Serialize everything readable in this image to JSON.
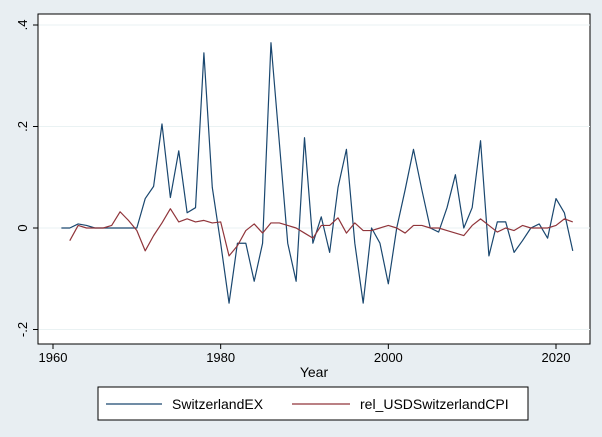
{
  "chart_data": {
    "type": "line",
    "title": "",
    "xlabel": "Year",
    "ylabel": "",
    "xlim": [
      1960,
      2023
    ],
    "ylim": [
      -0.2,
      0.4
    ],
    "x_ticks": [
      1960,
      1980,
      2000,
      2020
    ],
    "x_tick_labels": [
      "1960",
      "1980",
      "2000",
      "2020"
    ],
    "y_ticks": [
      -0.2,
      0,
      0.2,
      0.4
    ],
    "y_tick_labels": [
      "-.2",
      "0",
      ".2",
      ".4"
    ],
    "grid": "horizontal",
    "legend_position": "bottom",
    "series": [
      {
        "name": "SwitzerlandEX",
        "color": "#1a476f",
        "x": [
          1961,
          1962,
          1963,
          1964,
          1965,
          1966,
          1967,
          1968,
          1969,
          1970,
          1971,
          1972,
          1973,
          1974,
          1975,
          1976,
          1977,
          1978,
          1979,
          1980,
          1981,
          1982,
          1983,
          1984,
          1985,
          1986,
          1987,
          1988,
          1989,
          1990,
          1991,
          1992,
          1993,
          1994,
          1995,
          1996,
          1997,
          1998,
          1999,
          2000,
          2001,
          2002,
          2003,
          2004,
          2005,
          2006,
          2007,
          2008,
          2009,
          2010,
          2011,
          2012,
          2013,
          2014,
          2015,
          2016,
          2017,
          2018,
          2019,
          2020,
          2021,
          2022
        ],
        "y": [
          0,
          0,
          0.008,
          0.005,
          0,
          0,
          0,
          0,
          0,
          0,
          0.058,
          0.082,
          0.205,
          0.06,
          0.152,
          0.03,
          0.04,
          0.345,
          0.08,
          -0.03,
          -0.148,
          -0.03,
          -0.03,
          -0.105,
          -0.03,
          0.365,
          0.168,
          -0.03,
          -0.105,
          0.178,
          -0.03,
          0.022,
          -0.048,
          0.08,
          0.155,
          -0.03,
          -0.148,
          0,
          -0.03,
          -0.11,
          0,
          0.075,
          0.155,
          0.075,
          0,
          -0.008,
          0.04,
          0.105,
          0,
          0.04,
          0.172,
          -0.055,
          0.012,
          0.012,
          -0.048,
          -0.025,
          0,
          0.008,
          -0.02,
          0.058,
          0.03,
          -0.045
        ]
      },
      {
        "name": "rel_USDSwitzerlandCPI",
        "color": "#90353b",
        "x": [
          1962,
          1963,
          1964,
          1965,
          1966,
          1967,
          1968,
          1969,
          1970,
          1971,
          1972,
          1973,
          1974,
          1975,
          1976,
          1977,
          1978,
          1979,
          1980,
          1981,
          1982,
          1983,
          1984,
          1985,
          1986,
          1987,
          1988,
          1989,
          1990,
          1991,
          1992,
          1993,
          1994,
          1995,
          1996,
          1997,
          1998,
          1999,
          2000,
          2001,
          2002,
          2003,
          2004,
          2005,
          2006,
          2007,
          2008,
          2009,
          2010,
          2011,
          2012,
          2013,
          2014,
          2015,
          2016,
          2017,
          2018,
          2019,
          2020,
          2021,
          2022
        ],
        "y": [
          -0.025,
          0.005,
          0,
          0,
          0,
          0.005,
          0.032,
          0.015,
          -0.005,
          -0.045,
          -0.015,
          0.01,
          0.038,
          0.012,
          0.018,
          0.012,
          0.015,
          0.01,
          0.012,
          -0.055,
          -0.035,
          -0.005,
          0.008,
          -0.01,
          0.01,
          0.01,
          0.005,
          0,
          -0.01,
          -0.02,
          0.005,
          0.005,
          0.02,
          -0.01,
          0.01,
          -0.005,
          -0.005,
          0,
          0.005,
          0,
          -0.01,
          0.005,
          0.005,
          0,
          0,
          -0.005,
          -0.01,
          -0.015,
          0.005,
          0.018,
          0.005,
          -0.008,
          0,
          -0.005,
          0.005,
          0,
          0,
          0,
          0.005,
          0.018,
          0.012
        ]
      }
    ]
  }
}
